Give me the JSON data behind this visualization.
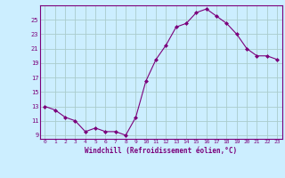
{
  "x": [
    0,
    1,
    2,
    3,
    4,
    5,
    6,
    7,
    8,
    9,
    10,
    11,
    12,
    13,
    14,
    15,
    16,
    17,
    18,
    19,
    20,
    21,
    22,
    23
  ],
  "y": [
    13.0,
    12.5,
    11.5,
    11.0,
    9.5,
    10.0,
    9.5,
    9.5,
    9.0,
    11.5,
    16.5,
    19.5,
    21.5,
    24.0,
    24.5,
    26.0,
    26.5,
    25.5,
    24.5,
    23.0,
    21.0,
    20.0,
    20.0,
    19.5
  ],
  "line_color": "#7b007b",
  "marker": "D",
  "marker_size": 2.0,
  "bg_color": "#cceeff",
  "grid_color": "#aacccc",
  "xlabel": "Windchill (Refroidissement éolien,°C)",
  "yticks": [
    9,
    11,
    13,
    15,
    17,
    19,
    21,
    23,
    25
  ],
  "xticks": [
    0,
    1,
    2,
    3,
    4,
    5,
    6,
    7,
    8,
    9,
    10,
    11,
    12,
    13,
    14,
    15,
    16,
    17,
    18,
    19,
    20,
    21,
    22,
    23
  ],
  "ylim": [
    8.5,
    27.0
  ],
  "xlim": [
    -0.5,
    23.5
  ],
  "axis_color": "#7b007b",
  "tick_color": "#7b007b"
}
